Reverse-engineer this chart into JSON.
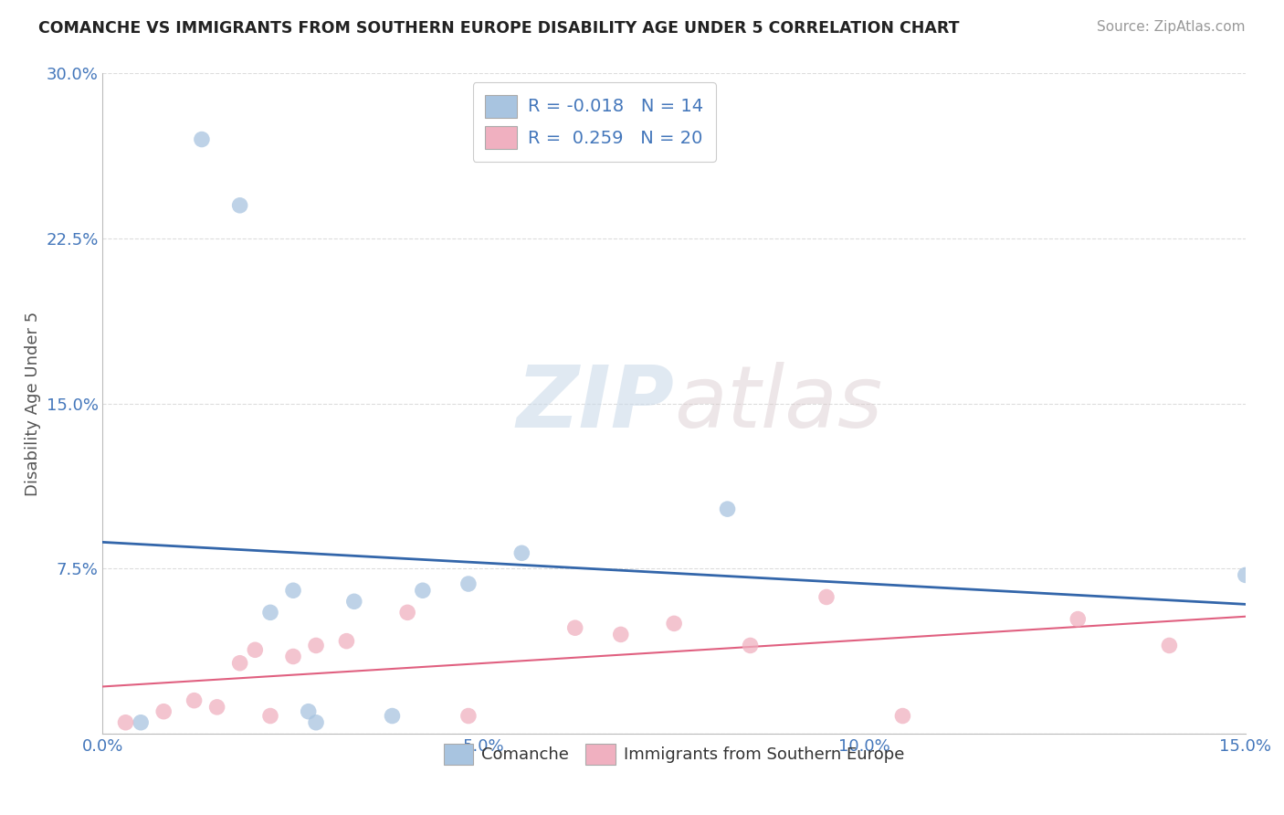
{
  "title": "COMANCHE VS IMMIGRANTS FROM SOUTHERN EUROPE DISABILITY AGE UNDER 5 CORRELATION CHART",
  "source": "Source: ZipAtlas.com",
  "ylabel": "Disability Age Under 5",
  "xlim": [
    0.0,
    0.15
  ],
  "ylim": [
    0.0,
    0.3
  ],
  "xticks": [
    0.0,
    0.05,
    0.1,
    0.15
  ],
  "xticklabels": [
    "0.0%",
    "5.0%",
    "10.0%",
    "15.0%"
  ],
  "yticks": [
    0.0,
    0.075,
    0.15,
    0.225,
    0.3
  ],
  "yticklabels": [
    "",
    "7.5%",
    "15.0%",
    "22.5%",
    "30.0%"
  ],
  "blue_R": -0.018,
  "blue_N": 14,
  "pink_R": 0.259,
  "pink_N": 20,
  "blue_color": "#a8c4e0",
  "pink_color": "#f0b0c0",
  "blue_line_color": "#3366aa",
  "pink_line_color": "#e06080",
  "legend_blue_label": "Comanche",
  "legend_pink_label": "Immigrants from Southern Europe",
  "watermark_zip": "ZIP",
  "watermark_atlas": "atlas",
  "background_color": "#ffffff",
  "grid_color": "#dddddd",
  "blue_scatter_x": [
    0.005,
    0.013,
    0.018,
    0.022,
    0.025,
    0.027,
    0.028,
    0.033,
    0.038,
    0.042,
    0.048,
    0.055,
    0.082,
    0.15
  ],
  "blue_scatter_y": [
    0.005,
    0.27,
    0.24,
    0.055,
    0.065,
    0.01,
    0.005,
    0.06,
    0.008,
    0.065,
    0.068,
    0.082,
    0.102,
    0.072
  ],
  "pink_scatter_x": [
    0.003,
    0.008,
    0.012,
    0.015,
    0.018,
    0.02,
    0.022,
    0.025,
    0.028,
    0.032,
    0.04,
    0.048,
    0.062,
    0.068,
    0.075,
    0.085,
    0.095,
    0.105,
    0.128,
    0.14
  ],
  "pink_scatter_y": [
    0.005,
    0.01,
    0.015,
    0.012,
    0.032,
    0.038,
    0.008,
    0.035,
    0.04,
    0.042,
    0.055,
    0.008,
    0.048,
    0.045,
    0.05,
    0.04,
    0.062,
    0.008,
    0.052,
    0.04
  ]
}
